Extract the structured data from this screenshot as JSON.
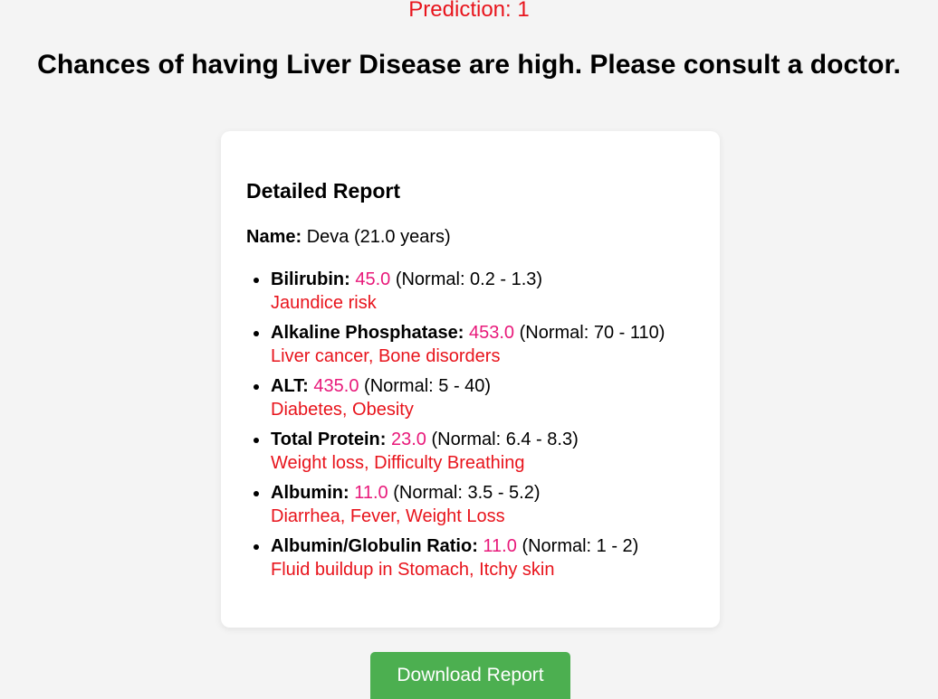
{
  "prediction": {
    "label": "Prediction: 1",
    "color": "#e8141c"
  },
  "headline": "Chances of having Liver Disease are high. Please consult a doctor.",
  "report": {
    "title": "Detailed Report",
    "name_label": "Name:",
    "name_value": "Deva (21.0 years)",
    "items": [
      {
        "label": "Bilirubin:",
        "value": "45.0",
        "normal": "(Normal: 0.2 - 1.3)",
        "risk": "Jaundice risk"
      },
      {
        "label": "Alkaline Phosphatase:",
        "value": "453.0",
        "normal": "(Normal: 70 - 110)",
        "risk": "Liver cancer, Bone disorders"
      },
      {
        "label": "ALT:",
        "value": "435.0",
        "normal": "(Normal: 5 - 40)",
        "risk": "Diabetes, Obesity"
      },
      {
        "label": "Total Protein:",
        "value": "23.0",
        "normal": "(Normal: 6.4 - 8.3)",
        "risk": "Weight loss, Difficulty Breathing"
      },
      {
        "label": "Albumin:",
        "value": "11.0",
        "normal": "(Normal: 3.5 - 5.2)",
        "risk": "Diarrhea, Fever, Weight Loss"
      },
      {
        "label": "Albumin/Globulin Ratio:",
        "value": "11.0",
        "normal": "(Normal: 1 - 2)",
        "risk": "Fluid buildup in Stomach, Itchy skin"
      }
    ],
    "value_color": "#e8197a",
    "risk_color": "#e8141c"
  },
  "download_button": {
    "label": "Download Report",
    "color": "#4caf50"
  }
}
